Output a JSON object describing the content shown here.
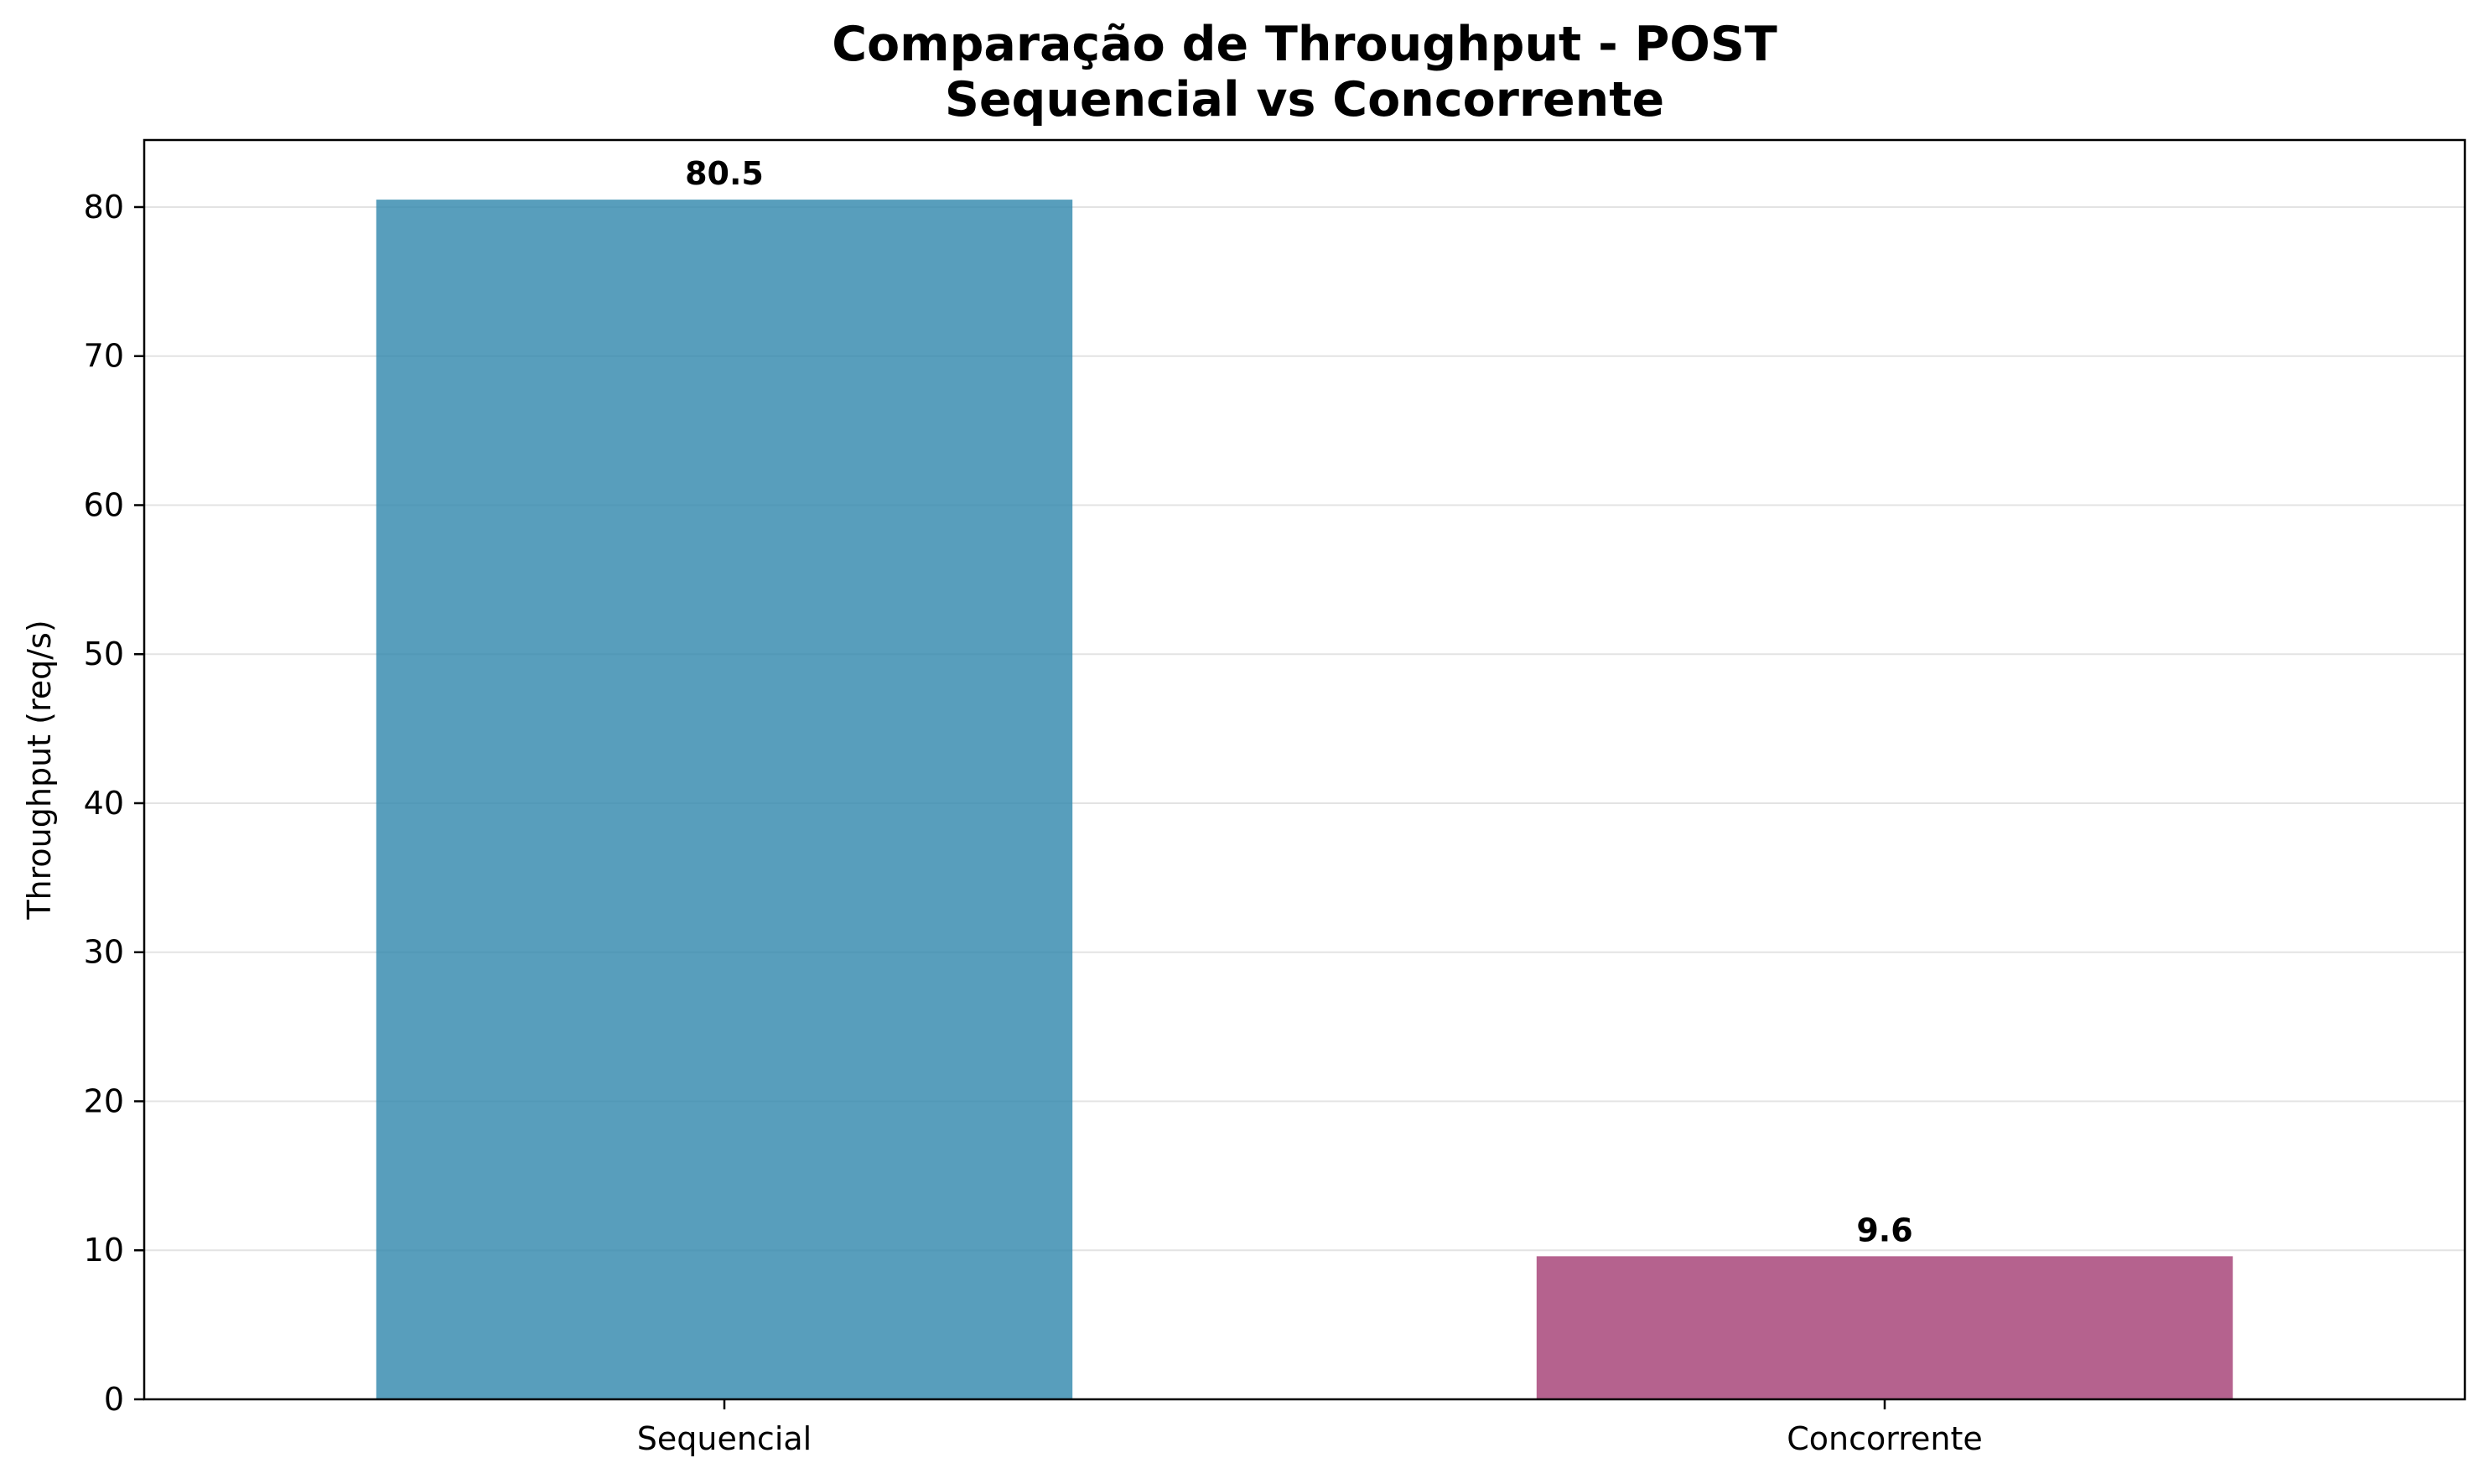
{
  "chart_data": {
    "type": "bar",
    "title": "Comparação de Throughput - POST",
    "subtitle": "Sequencial vs Concorrente",
    "xlabel": "",
    "ylabel": "Throughput (req/s)",
    "categories": [
      "Sequencial",
      "Concorrente"
    ],
    "values": [
      80.5,
      9.6
    ],
    "value_labels": [
      "80.5",
      "9.6"
    ],
    "colors": [
      "#2E86AB",
      "#A23B72"
    ],
    "ylim": [
      0,
      84.5
    ],
    "yticks": [
      0,
      10,
      20,
      30,
      40,
      50,
      60,
      70,
      80
    ],
    "ytick_labels": [
      "0",
      "10",
      "20",
      "30",
      "40",
      "50",
      "60",
      "70",
      "80"
    ],
    "grid": "y",
    "legend": "none"
  }
}
